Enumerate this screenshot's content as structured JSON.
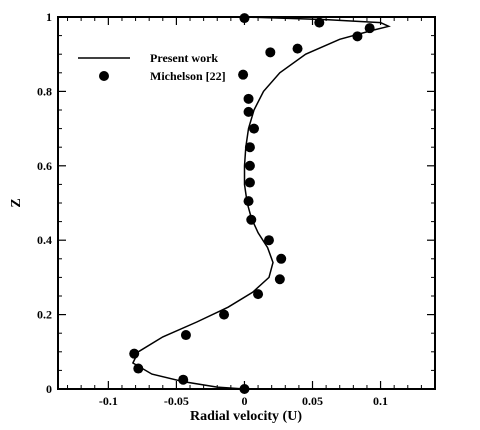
{
  "chart_data": {
    "type": "line",
    "xlabel": "Radial velocity (U)",
    "ylabel": "Z",
    "xlim": [
      -0.137,
      0.14
    ],
    "ylim": [
      0,
      1
    ],
    "x_ticks": [
      -0.1,
      -0.05,
      0,
      0.05,
      0.1
    ],
    "x_tick_labels": [
      "-0.1",
      "-0.05",
      "0",
      "0.05",
      "0.1"
    ],
    "y_ticks": [
      0,
      0.2,
      0.4,
      0.6,
      0.8,
      1
    ],
    "y_tick_labels": [
      "0",
      "0.2",
      "0.4",
      "0.6",
      "0.8",
      "1"
    ],
    "grid": false,
    "legend_position": "top-left",
    "series": [
      {
        "name": "Present work",
        "style": "line",
        "color": "#000000",
        "points": [
          [
            0.0,
            0.0
          ],
          [
            -0.02,
            0.005
          ],
          [
            -0.045,
            0.02
          ],
          [
            -0.068,
            0.04
          ],
          [
            -0.082,
            0.07
          ],
          [
            -0.078,
            0.1
          ],
          [
            -0.06,
            0.14
          ],
          [
            -0.035,
            0.18
          ],
          [
            -0.012,
            0.22
          ],
          [
            0.006,
            0.26
          ],
          [
            0.018,
            0.3
          ],
          [
            0.021,
            0.34
          ],
          [
            0.017,
            0.38
          ],
          [
            0.01,
            0.42
          ],
          [
            0.005,
            0.46
          ],
          [
            0.002,
            0.5
          ],
          [
            0.0,
            0.55
          ],
          [
            0.0,
            0.6
          ],
          [
            0.001,
            0.65
          ],
          [
            0.003,
            0.7
          ],
          [
            0.007,
            0.75
          ],
          [
            0.014,
            0.8
          ],
          [
            0.026,
            0.85
          ],
          [
            0.045,
            0.9
          ],
          [
            0.07,
            0.94
          ],
          [
            0.095,
            0.965
          ],
          [
            0.106,
            0.975
          ],
          [
            0.1,
            0.985
          ],
          [
            0.06,
            0.993
          ],
          [
            0.0,
            1.0
          ]
        ]
      },
      {
        "name": "Michelson [22]",
        "style": "marker",
        "color": "#000000",
        "points": [
          [
            0.0,
            0.0
          ],
          [
            -0.045,
            0.025
          ],
          [
            -0.078,
            0.055
          ],
          [
            -0.081,
            0.095
          ],
          [
            -0.043,
            0.145
          ],
          [
            -0.015,
            0.2
          ],
          [
            0.01,
            0.255
          ],
          [
            0.026,
            0.295
          ],
          [
            0.027,
            0.35
          ],
          [
            0.018,
            0.4
          ],
          [
            0.005,
            0.455
          ],
          [
            0.003,
            0.505
          ],
          [
            0.004,
            0.555
          ],
          [
            0.004,
            0.6
          ],
          [
            0.004,
            0.65
          ],
          [
            0.007,
            0.7
          ],
          [
            0.003,
            0.745
          ],
          [
            0.003,
            0.78
          ],
          [
            -0.001,
            0.845
          ],
          [
            0.019,
            0.905
          ],
          [
            0.039,
            0.915
          ],
          [
            0.083,
            0.948
          ],
          [
            0.092,
            0.97
          ],
          [
            0.055,
            0.985
          ],
          [
            0.0,
            0.997
          ]
        ]
      }
    ]
  }
}
